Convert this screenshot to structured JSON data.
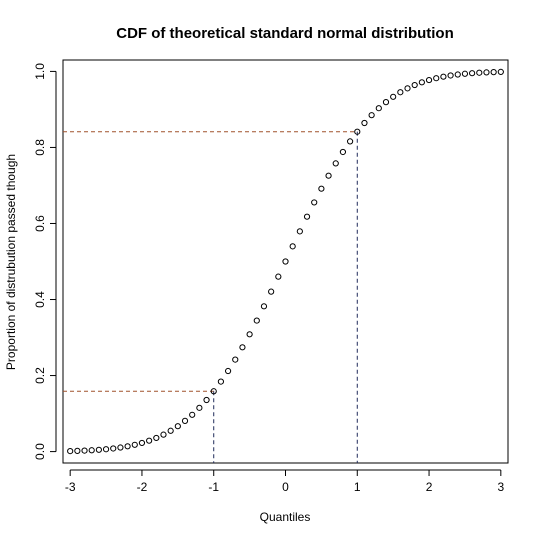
{
  "chart_data": {
    "type": "scatter",
    "title": "CDF of theoretical standard normal distribution",
    "xlabel": "Quantiles",
    "ylabel": "Proportion of distrubution passed though",
    "xlim": [
      -3.1,
      3.1
    ],
    "ylim": [
      -0.03,
      1.03
    ],
    "x_ticks": [
      -3,
      -2,
      -1,
      0,
      1,
      2,
      3
    ],
    "y_ticks": [
      0.0,
      0.2,
      0.4,
      0.6,
      0.8,
      1.0
    ],
    "x_tick_labels": [
      "-3",
      "-2",
      "-1",
      "0",
      "1",
      "2",
      "3"
    ],
    "y_tick_labels": [
      "0.0",
      "0.2",
      "0.4",
      "0.6",
      "0.8",
      "1.0"
    ],
    "grid": false,
    "series": [
      {
        "x": [
          -3.0,
          -2.9,
          -2.8,
          -2.7,
          -2.6,
          -2.5,
          -2.4,
          -2.3,
          -2.2,
          -2.1,
          -2.0,
          -1.9,
          -1.8,
          -1.7,
          -1.6,
          -1.5,
          -1.4,
          -1.3,
          -1.2,
          -1.1,
          -1.0,
          -0.9,
          -0.8,
          -0.7,
          -0.6,
          -0.5,
          -0.4,
          -0.3,
          -0.2,
          -0.1,
          0.0,
          0.1,
          0.2,
          0.3,
          0.4,
          0.5,
          0.6,
          0.7,
          0.8,
          0.9,
          1.0,
          1.1,
          1.2,
          1.3,
          1.4,
          1.5,
          1.6,
          1.7,
          1.8,
          1.9,
          2.0,
          2.1,
          2.2,
          2.3,
          2.4,
          2.5,
          2.6,
          2.7,
          2.8,
          2.9,
          3.0
        ],
        "y": [
          0.0013,
          0.0019,
          0.0026,
          0.0035,
          0.0047,
          0.0062,
          0.0082,
          0.0107,
          0.0139,
          0.0179,
          0.0228,
          0.0287,
          0.0359,
          0.0446,
          0.0548,
          0.0668,
          0.0808,
          0.0968,
          0.1151,
          0.1357,
          0.1587,
          0.1841,
          0.2119,
          0.242,
          0.2743,
          0.3085,
          0.3446,
          0.3821,
          0.4207,
          0.4602,
          0.5,
          0.5398,
          0.5793,
          0.6179,
          0.6554,
          0.6915,
          0.7257,
          0.758,
          0.7881,
          0.8159,
          0.8413,
          0.8643,
          0.8849,
          0.9032,
          0.9192,
          0.9332,
          0.9452,
          0.9554,
          0.9641,
          0.9713,
          0.9772,
          0.9821,
          0.9861,
          0.9893,
          0.9918,
          0.9938,
          0.9953,
          0.9965,
          0.9974,
          0.9981,
          0.9987
        ]
      }
    ],
    "reference_lines": [
      {
        "x": -1,
        "y": 0.1587
      },
      {
        "x": 1,
        "y": 0.8413
      }
    ],
    "colors": {
      "horizontal_guides": "#a0522d",
      "vertical_guides": "#1f2a5a",
      "points": "#000000"
    }
  }
}
